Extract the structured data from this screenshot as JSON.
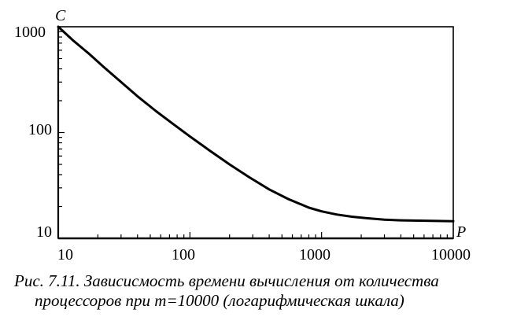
{
  "chart_data": {
    "type": "line",
    "xscale": "log",
    "yscale": "log",
    "xlim": [
      10,
      10000
    ],
    "ylim": [
      10,
      1000
    ],
    "x_axis_name": "P",
    "y_axis_name": "C",
    "x_tick_labels": [
      "10",
      "100",
      "1000",
      "10000"
    ],
    "y_tick_labels": [
      "1000",
      "100",
      "10"
    ],
    "grid": false,
    "series": [
      {
        "x": [
          10,
          13,
          17,
          22,
          30,
          40,
          55,
          75,
          100,
          140,
          200,
          280,
          400,
          560,
          800,
          1000,
          1300,
          1700,
          2200,
          3000,
          4000,
          5500,
          7500,
          10000
        ],
        "y": [
          1000,
          740,
          560,
          420,
          300,
          220,
          160,
          120,
          92,
          68,
          50,
          38,
          29,
          23.5,
          19.5,
          18,
          16.8,
          16,
          15.5,
          15,
          14.8,
          14.7,
          14.6,
          14.5
        ]
      }
    ],
    "caption": {
      "line1": "Рис. 7.11. Зависисмость времени вычисления от количества",
      "line2": "процессоров при m=10000 (логарифмическая шкала)"
    }
  }
}
